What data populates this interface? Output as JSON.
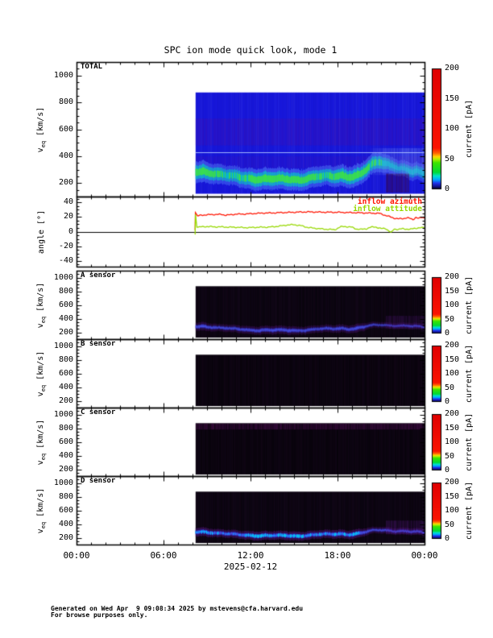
{
  "title": "SPC ion mode quick look, mode 1",
  "x_axis": {
    "tick_labels": [
      "00:00",
      "06:00",
      "12:00",
      "18:00",
      "00:00"
    ],
    "tick_hours": [
      0,
      6,
      12,
      18,
      24
    ],
    "minor_step_hours": 1,
    "range_hours": [
      0,
      24
    ],
    "date_label": "2025-02-12"
  },
  "colorbar": {
    "label": "current [pA]",
    "tick_values": [
      0,
      50,
      100,
      150,
      200
    ],
    "range": [
      0,
      200
    ],
    "gradient_stops": [
      [
        0,
        "#000000"
      ],
      [
        0.02,
        "#101080"
      ],
      [
        0.05,
        "#1f2fe8"
      ],
      [
        0.08,
        "#00a8ff"
      ],
      [
        0.11,
        "#00e2c8"
      ],
      [
        0.14,
        "#00d938"
      ],
      [
        0.22,
        "#3ce400"
      ],
      [
        0.25,
        "#b4ee00"
      ],
      [
        0.27,
        "#ffd200"
      ],
      [
        0.3,
        "#ff6000"
      ],
      [
        0.34,
        "#fa1400"
      ],
      [
        1,
        "#e00000"
      ]
    ]
  },
  "footer": {
    "line1": "Generated on Wed Apr  9 09:08:34 2025 by mstevens@cfa.harvard.edu",
    "line2": "For browse purposes only."
  },
  "chart_data": [
    {
      "id": "total",
      "type": "heatmap",
      "panel_title": "TOTAL",
      "ylabel": "v_eq [km/s]",
      "ylim": [
        100,
        1100
      ],
      "y_ticks": [
        200,
        400,
        600,
        800,
        1000
      ],
      "xlim_hours": [
        0,
        24
      ],
      "data_start_hour": 8.2,
      "data_end_hour": 24,
      "data_v_range": [
        120,
        875
      ],
      "base_color": "#1818dd",
      "style": "total",
      "seed": 11,
      "colorbar_units": "current [pA]",
      "colorbar_ticks": [
        0,
        50,
        100,
        150,
        200
      ],
      "beam": {
        "hours": [
          8.2,
          8.7,
          9.2,
          9.7,
          10.2,
          10.7,
          11.2,
          11.7,
          12.2,
          13.0,
          13.8,
          14.5,
          15.2,
          16.0,
          16.6,
          17.2,
          17.8,
          18.3,
          18.7,
          19.2,
          19.6,
          20.0,
          20.4,
          20.9,
          21.4,
          21.9,
          22.3,
          22.8,
          23.1,
          23.4,
          23.7,
          24.0
        ],
        "v_kms": [
          285,
          290,
          280,
          265,
          258,
          250,
          245,
          240,
          232,
          230,
          228,
          232,
          228,
          235,
          245,
          250,
          252,
          262,
          250,
          252,
          268,
          300,
          340,
          360,
          345,
          330,
          310,
          295,
          280,
          285,
          275,
          270
        ],
        "intensity": [
          0.85,
          0.9,
          0.8,
          0.75,
          0.7,
          0.7,
          0.75,
          0.8,
          0.9,
          0.95,
          0.9,
          0.95,
          0.9,
          0.85,
          0.8,
          0.75,
          0.8,
          0.9,
          0.8,
          0.95,
          0.85,
          0.8,
          0.75,
          0.7,
          0.6,
          0.45,
          0.4,
          0.45,
          0.6,
          0.5,
          0.5,
          0.55
        ]
      },
      "intensity_scale": 1,
      "features": {
        "dark_bands_v": [
          [
            480,
            680
          ],
          [
            310,
            400
          ]
        ],
        "light_line_v": 430,
        "right_haze": {
          "from_hour": 20.0,
          "v_range": [
            260,
            460
          ]
        },
        "dark_patch": {
          "from_hour": 21.3,
          "to_hour": 22.9,
          "v_range": [
            130,
            270
          ]
        }
      }
    },
    {
      "id": "angle",
      "type": "line",
      "panel_title": "",
      "ylabel": "angle [°]",
      "ylim": [
        -48,
        48
      ],
      "y_ticks": [
        -40,
        -20,
        0,
        20,
        40
      ],
      "y_minor_step": 5,
      "y_major_step": 20,
      "zero_line": true,
      "legend_position": "top-right",
      "series": [
        {
          "name": "inflow azimuth",
          "color": "#ff1400",
          "hours": [
            8.18,
            8.2,
            8.35,
            8.6,
            9.0,
            9.5,
            10.0,
            10.3,
            10.6,
            11.0,
            11.5,
            12.0,
            12.5,
            13.0,
            13.5,
            14.0,
            14.5,
            15.0,
            15.5,
            16.0,
            16.5,
            17.0,
            17.5,
            18.0,
            18.5,
            19.0,
            19.5,
            20.0,
            20.5,
            20.9,
            21.1,
            21.5,
            21.9,
            22.2,
            22.5,
            22.8,
            23.0,
            23.2,
            23.4,
            23.6,
            23.8,
            24.0
          ],
          "values": [
            2,
            26,
            21.5,
            22.5,
            23,
            23.5,
            23.5,
            22.5,
            23,
            24,
            24,
            24.5,
            25,
            25.5,
            25.5,
            26,
            26.2,
            26.5,
            26.8,
            27,
            26.8,
            26.6,
            26.5,
            26.5,
            26.2,
            26,
            25.8,
            25.5,
            25.2,
            25,
            23.5,
            21,
            18.5,
            17.5,
            17.8,
            19,
            18,
            16.5,
            19.5,
            18,
            19.5,
            19
          ]
        },
        {
          "name": "inflow attitude",
          "color": "#97d800",
          "hours": [
            8.18,
            8.2,
            8.3,
            8.6,
            9.0,
            9.5,
            10.0,
            10.5,
            11.0,
            11.5,
            12.0,
            12.5,
            13.0,
            13.5,
            14.0,
            14.5,
            15.0,
            15.5,
            16.0,
            16.5,
            17.0,
            17.5,
            17.8,
            18.2,
            18.5,
            19.0,
            19.3,
            19.6,
            20.0,
            20.3,
            20.6,
            21.0,
            21.3,
            21.7,
            21.9,
            22.2,
            22.5,
            23.0,
            23.3,
            23.6,
            24.0
          ],
          "values": [
            -4,
            24,
            6,
            6.5,
            7,
            6.5,
            6.5,
            6,
            6,
            5.5,
            5.5,
            6,
            6,
            6.5,
            7.5,
            9,
            9.5,
            8,
            5.5,
            4.5,
            3.5,
            3,
            2.5,
            6.5,
            7,
            6,
            3.5,
            3,
            4,
            6,
            6.5,
            4,
            4.5,
            -1.5,
            3.5,
            3,
            4,
            3,
            4.5,
            5,
            5.5
          ]
        }
      ]
    },
    {
      "id": "a",
      "type": "heatmap",
      "panel_title": "A sensor",
      "ylabel": "v_eq [km/s]",
      "ylim": [
        100,
        1100
      ],
      "y_ticks": [
        200,
        400,
        600,
        800,
        1000
      ],
      "xlim_hours": [
        0,
        24
      ],
      "data_start_hour": 8.2,
      "data_end_hour": 24,
      "data_v_range": [
        120,
        875
      ],
      "base_color": "#060409",
      "style": "dark",
      "seed": 23,
      "colorbar_units": "current [pA]",
      "colorbar_ticks": [
        0,
        50,
        100,
        150,
        200
      ],
      "beam": {
        "hours": [
          8.2,
          8.7,
          9.2,
          9.7,
          10.2,
          10.7,
          11.2,
          11.7,
          12.2,
          13.0,
          13.8,
          14.5,
          15.2,
          16.0,
          16.6,
          17.2,
          17.8,
          18.3,
          18.7,
          19.2,
          19.6,
          20.0,
          20.4,
          20.9,
          21.4,
          21.9,
          22.3,
          22.8,
          23.1,
          23.4,
          23.7,
          24.0
        ],
        "v_kms": [
          285,
          290,
          280,
          265,
          258,
          250,
          245,
          240,
          232,
          230,
          228,
          232,
          228,
          235,
          245,
          250,
          252,
          262,
          250,
          252,
          268,
          285,
          300,
          310,
          305,
          300,
          295,
          290,
          285,
          285,
          280,
          275
        ],
        "intensity": [
          0.8,
          0.85,
          0.75,
          0.7,
          0.7,
          0.65,
          0.7,
          0.75,
          0.8,
          0.85,
          0.8,
          0.85,
          0.8,
          0.75,
          0.7,
          0.7,
          0.75,
          0.8,
          0.75,
          0.85,
          0.8,
          0.6,
          0.5,
          0.45,
          0.45,
          0.4,
          0.45,
          0.5,
          0.55,
          0.5,
          0.5,
          0.5
        ]
      },
      "intensity_scale": 0.75,
      "features": {
        "right_fuzz": {
          "from_hour": 21.3,
          "v_range": [
            250,
            440
          ]
        }
      }
    },
    {
      "id": "b",
      "type": "heatmap",
      "panel_title": "B sensor",
      "ylabel": "v_eq [km/s]",
      "ylim": [
        100,
        1100
      ],
      "y_ticks": [
        200,
        400,
        600,
        800,
        1000
      ],
      "xlim_hours": [
        0,
        24
      ],
      "data_start_hour": 8.2,
      "data_end_hour": 24,
      "data_v_range": [
        120,
        875
      ],
      "base_color": "#050307",
      "style": "dark",
      "seed": 37,
      "colorbar_units": "current [pA]",
      "colorbar_ticks": [
        0,
        50,
        100,
        150,
        200
      ],
      "intensity_scale": 0,
      "features": {}
    },
    {
      "id": "c",
      "type": "heatmap",
      "panel_title": "C sensor",
      "ylabel": "v_eq [km/s]",
      "ylim": [
        100,
        1100
      ],
      "y_ticks": [
        200,
        400,
        600,
        800,
        1000
      ],
      "xlim_hours": [
        0,
        24
      ],
      "data_start_hour": 8.2,
      "data_end_hour": 24,
      "data_v_range": [
        120,
        875
      ],
      "base_color": "#050307",
      "style": "dark",
      "seed": 51,
      "colorbar_units": "current [pA]",
      "colorbar_ticks": [
        0,
        50,
        100,
        150,
        200
      ],
      "intensity_scale": 0,
      "features": {
        "top_band_v": [
          780,
          868
        ]
      }
    },
    {
      "id": "d",
      "type": "heatmap",
      "panel_title": "D sensor",
      "ylabel": "v_eq [km/s]",
      "ylim": [
        100,
        1100
      ],
      "y_ticks": [
        200,
        400,
        600,
        800,
        1000
      ],
      "xlim_hours": [
        0,
        24
      ],
      "data_start_hour": 8.2,
      "data_end_hour": 24,
      "data_v_range": [
        120,
        875
      ],
      "base_color": "#060409",
      "style": "dark",
      "seed": 67,
      "colorbar_units": "current [pA]",
      "colorbar_ticks": [
        0,
        50,
        100,
        150,
        200
      ],
      "beam": {
        "hours": [
          8.2,
          8.7,
          9.2,
          9.7,
          10.2,
          10.7,
          11.2,
          11.7,
          12.2,
          13.0,
          13.8,
          14.5,
          15.2,
          16.0,
          16.6,
          17.2,
          17.8,
          18.3,
          18.7,
          19.2,
          19.6,
          20.0,
          20.4,
          20.9,
          21.4,
          21.9,
          22.3,
          22.8,
          23.1,
          23.4,
          23.7,
          24.0
        ],
        "v_kms": [
          285,
          290,
          280,
          265,
          258,
          250,
          245,
          240,
          232,
          230,
          228,
          232,
          228,
          235,
          245,
          250,
          252,
          262,
          250,
          252,
          268,
          285,
          305,
          315,
          310,
          300,
          295,
          290,
          285,
          285,
          280,
          275
        ],
        "intensity": [
          0.85,
          0.9,
          0.85,
          0.8,
          0.8,
          0.75,
          0.8,
          0.85,
          0.92,
          0.95,
          0.9,
          0.95,
          0.9,
          0.88,
          0.8,
          0.8,
          0.85,
          0.9,
          0.85,
          0.95,
          0.85,
          0.6,
          0.5,
          0.5,
          0.5,
          0.45,
          0.5,
          0.55,
          0.6,
          0.55,
          0.55,
          0.55
        ]
      },
      "intensity_scale": 1,
      "features": {
        "right_fuzz": {
          "from_hour": 21.3,
          "v_range": [
            250,
            450
          ]
        }
      }
    }
  ]
}
